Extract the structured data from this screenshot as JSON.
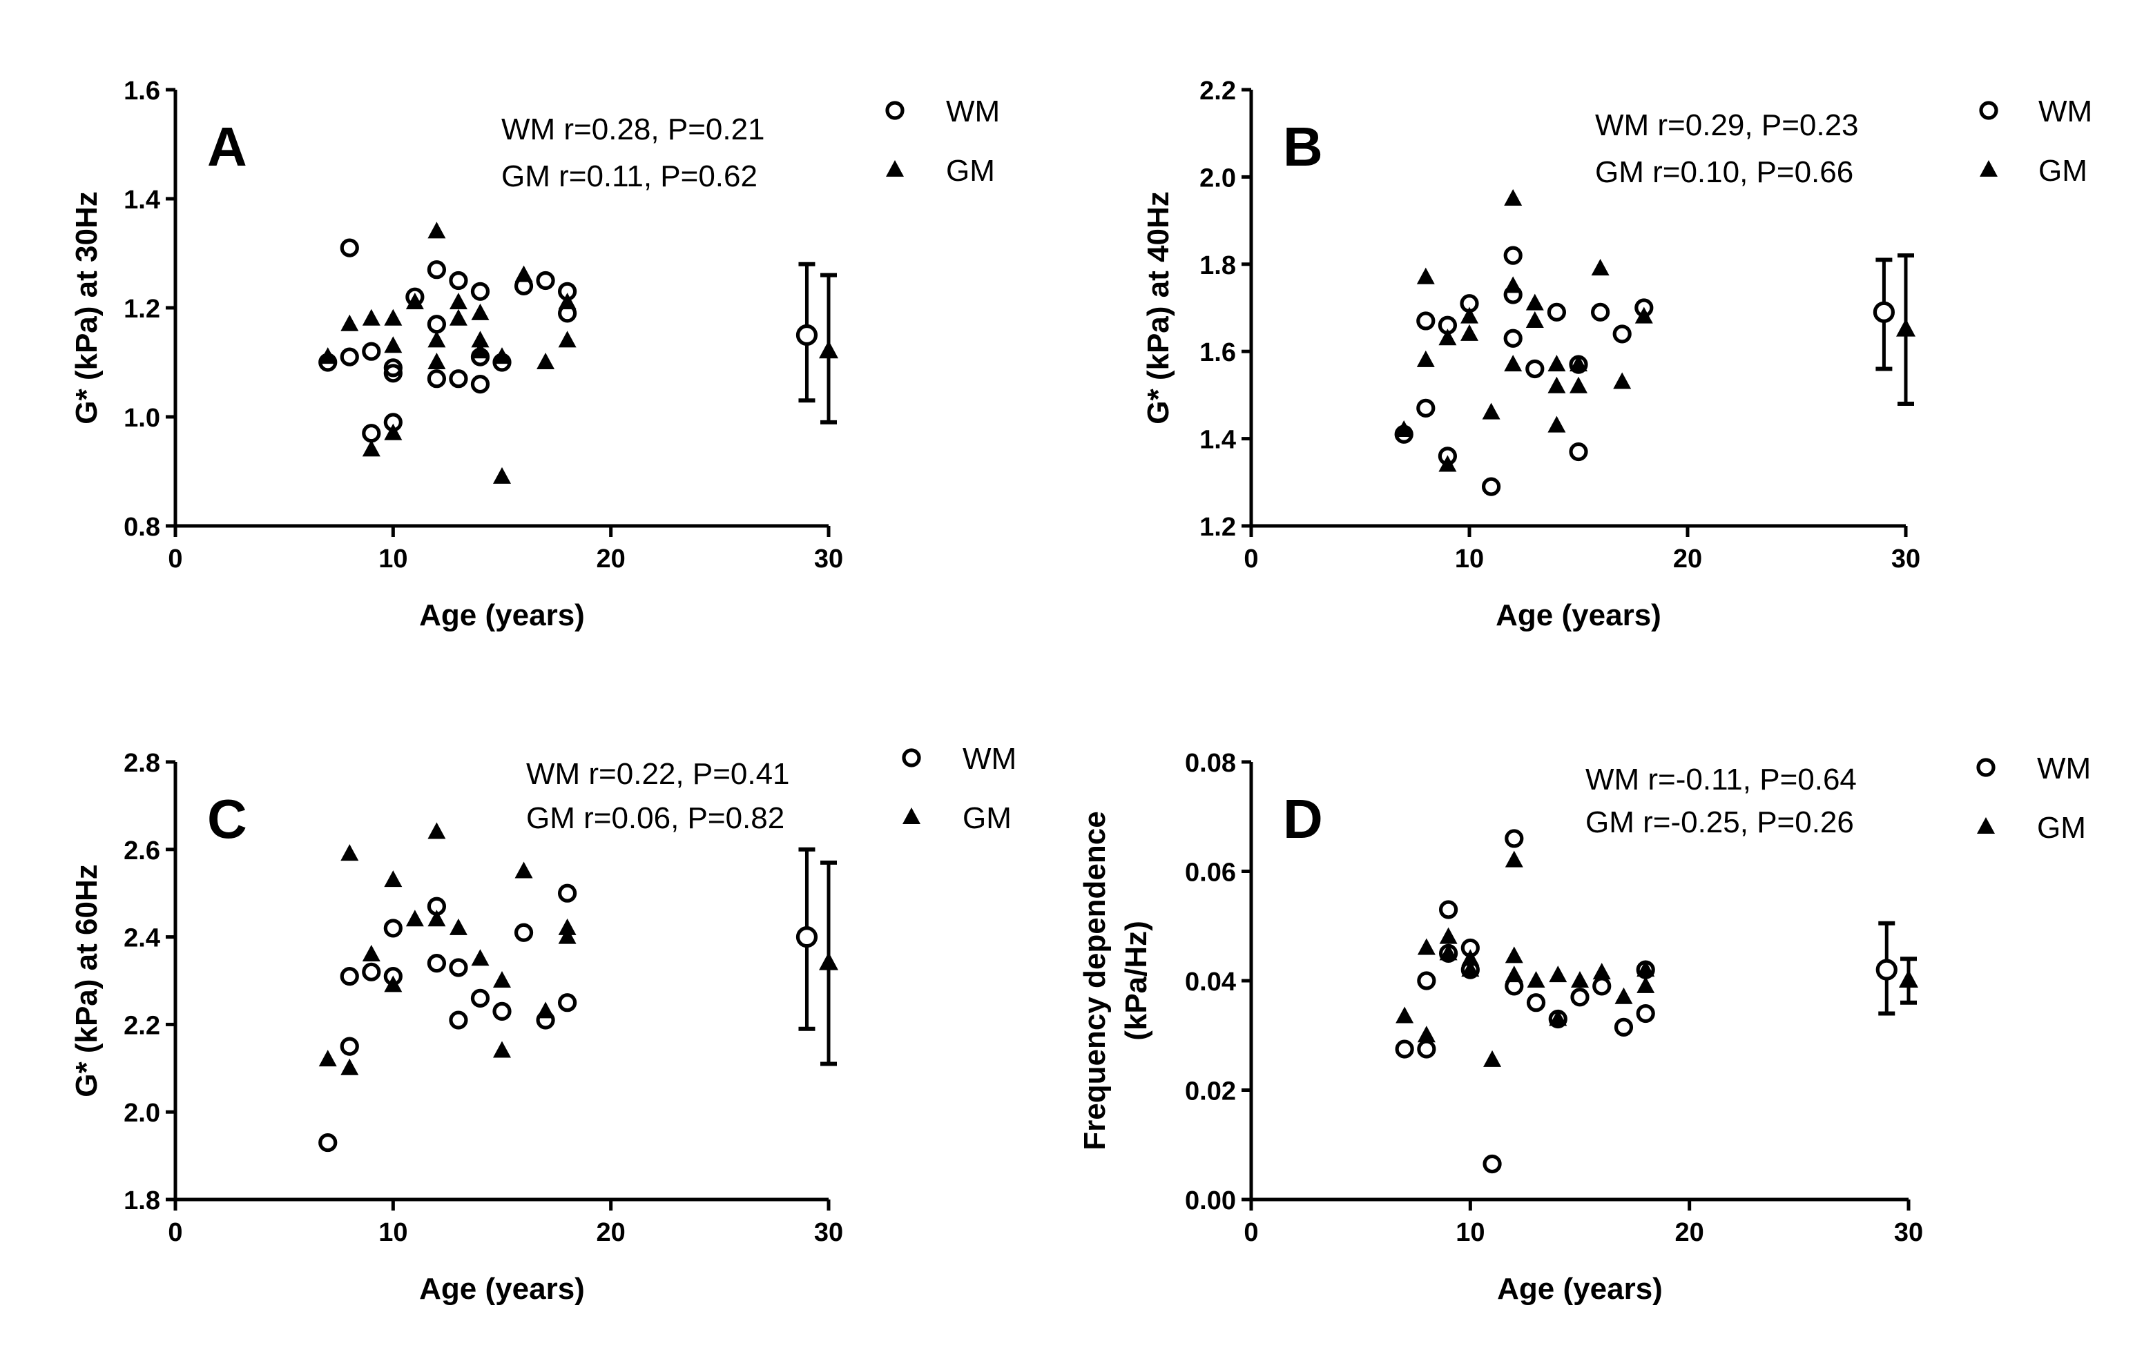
{
  "chart_data": [
    {
      "type": "scatter",
      "panel_label": "A",
      "xlabel": "Age (years)",
      "ylabel": [
        "G* (kPa) at 30Hz"
      ],
      "xlim": [
        0,
        30
      ],
      "ylim": [
        0.8,
        1.6
      ],
      "xticks": [
        0,
        10,
        20,
        30
      ],
      "xtick_labels": [
        "0",
        "10",
        "20",
        "30"
      ],
      "yticks": [
        0.8,
        1.0,
        1.2,
        1.4,
        1.6
      ],
      "ytick_labels": [
        "0.8",
        "1.0",
        "1.2",
        "1.4",
        "1.6"
      ],
      "stats": [
        "WM r=0.28, P=0.21",
        "GM  r=0.11, P=0.62"
      ],
      "legend_position": "top-right",
      "series": [
        {
          "name": "WM",
          "marker": "open-circle",
          "x": [
            7,
            8,
            8,
            9,
            9,
            10,
            10,
            10,
            11,
            12,
            12,
            12,
            13,
            13,
            14,
            14,
            14,
            15,
            16,
            17,
            18,
            18
          ],
          "y": [
            1.1,
            1.31,
            1.11,
            1.12,
            0.97,
            1.09,
            1.08,
            0.99,
            1.22,
            1.27,
            1.17,
            1.07,
            1.25,
            1.07,
            1.23,
            1.11,
            1.06,
            1.1,
            1.24,
            1.25,
            1.23,
            1.19
          ],
          "summary": {
            "x": 29,
            "mean": 1.15,
            "upper": 1.28,
            "lower": 1.03
          }
        },
        {
          "name": "GM",
          "marker": "filled-triangle",
          "x": [
            7,
            8,
            9,
            9,
            10,
            10,
            10,
            11,
            12,
            12,
            12,
            13,
            13,
            14,
            14,
            14,
            15,
            15,
            16,
            17,
            18,
            18
          ],
          "y": [
            1.11,
            1.17,
            1.18,
            0.94,
            1.18,
            1.13,
            0.97,
            1.21,
            1.34,
            1.14,
            1.1,
            1.21,
            1.18,
            1.19,
            1.14,
            1.12,
            0.89,
            1.11,
            1.26,
            1.1,
            1.21,
            1.14
          ],
          "summary": {
            "x": 30,
            "mean": 1.12,
            "upper": 1.26,
            "lower": 0.99
          }
        }
      ]
    },
    {
      "type": "scatter",
      "panel_label": "B",
      "xlabel": "Age (years)",
      "ylabel": [
        "G* (kPa) at 40Hz"
      ],
      "xlim": [
        0,
        30
      ],
      "ylim": [
        1.2,
        2.2
      ],
      "xticks": [
        0,
        10,
        20,
        30
      ],
      "xtick_labels": [
        "0",
        "10",
        "20",
        "30"
      ],
      "yticks": [
        1.2,
        1.4,
        1.6,
        1.8,
        2.0,
        2.2
      ],
      "ytick_labels": [
        "1.2",
        "1.4",
        "1.6",
        "1.8",
        "2.0",
        "2.2"
      ],
      "stats": [
        "WM r=0.29, P=0.23",
        "GM  r=0.10, P=0.66"
      ],
      "legend_position": "top-right",
      "series": [
        {
          "name": "WM",
          "marker": "open-circle",
          "x": [
            7,
            8,
            8,
            9,
            9,
            10,
            11,
            12,
            12,
            12,
            13,
            14,
            15,
            15,
            16,
            17,
            18
          ],
          "y": [
            1.41,
            1.47,
            1.67,
            1.36,
            1.66,
            1.71,
            1.29,
            1.82,
            1.63,
            1.73,
            1.56,
            1.69,
            1.57,
            1.37,
            1.69,
            1.64,
            1.7
          ],
          "summary": {
            "x": 29,
            "mean": 1.69,
            "upper": 1.81,
            "lower": 1.56
          }
        },
        {
          "name": "GM",
          "marker": "filled-triangle",
          "x": [
            7,
            8,
            8,
            9,
            9,
            10,
            10,
            11,
            12,
            12,
            12,
            13,
            13,
            14,
            14,
            14,
            15,
            15,
            16,
            17,
            18
          ],
          "y": [
            1.42,
            1.77,
            1.58,
            1.63,
            1.34,
            1.68,
            1.64,
            1.46,
            1.95,
            1.75,
            1.57,
            1.71,
            1.67,
            1.57,
            1.52,
            1.43,
            1.57,
            1.52,
            1.79,
            1.53,
            1.68
          ],
          "summary": {
            "x": 30,
            "mean": 1.65,
            "upper": 1.82,
            "lower": 1.48
          }
        }
      ]
    },
    {
      "type": "scatter",
      "panel_label": "C",
      "xlabel": "Age (years)",
      "ylabel": [
        "G* (kPa) at 60Hz"
      ],
      "xlim": [
        0,
        30
      ],
      "ylim": [
        1.8,
        2.8
      ],
      "xticks": [
        0,
        10,
        20,
        30
      ],
      "xtick_labels": [
        "0",
        "10",
        "20",
        "30"
      ],
      "yticks": [
        1.8,
        2.0,
        2.2,
        2.4,
        2.6,
        2.8
      ],
      "ytick_labels": [
        "1.8",
        "2.0",
        "2.2",
        "2.4",
        "2.6",
        "2.8"
      ],
      "stats": [
        "WM r=0.22, P=0.41",
        "GM  r=0.06, P=0.82"
      ],
      "legend_position": "top-right",
      "series": [
        {
          "name": "WM",
          "marker": "open-circle",
          "x": [
            7,
            8,
            8,
            9,
            10,
            10,
            12,
            12,
            13,
            13,
            14,
            15,
            16,
            17,
            18,
            18
          ],
          "y": [
            1.93,
            2.15,
            2.31,
            2.32,
            2.31,
            2.42,
            2.47,
            2.34,
            2.33,
            2.21,
            2.26,
            2.23,
            2.41,
            2.21,
            2.25,
            2.5
          ],
          "summary": {
            "x": 29,
            "mean": 2.4,
            "upper": 2.6,
            "lower": 2.19
          }
        },
        {
          "name": "GM",
          "marker": "filled-triangle",
          "x": [
            7,
            8,
            8,
            9,
            10,
            10,
            11,
            12,
            12,
            13,
            14,
            15,
            15,
            16,
            17,
            18,
            18
          ],
          "y": [
            2.12,
            2.1,
            2.59,
            2.36,
            2.53,
            2.29,
            2.44,
            2.64,
            2.44,
            2.42,
            2.35,
            2.3,
            2.14,
            2.55,
            2.23,
            2.42,
            2.4
          ],
          "summary": {
            "x": 30,
            "mean": 2.34,
            "upper": 2.57,
            "lower": 2.11
          }
        }
      ]
    },
    {
      "type": "scatter",
      "panel_label": "D",
      "xlabel": "Age (years)",
      "ylabel": [
        "Frequency dependence",
        "(kPa/Hz)"
      ],
      "xlim": [
        0,
        30
      ],
      "ylim": [
        0,
        0.08
      ],
      "xticks": [
        0,
        10,
        20,
        30
      ],
      "xtick_labels": [
        "0",
        "10",
        "20",
        "30"
      ],
      "yticks": [
        0,
        0.02,
        0.04,
        0.06,
        0.08
      ],
      "ytick_labels": [
        "0.00",
        "0.02",
        "0.04",
        "0.06",
        "0.08"
      ],
      "stats": [
        "WM r=-0.11, P=0.64",
        "GM r=-0.25, P=0.26"
      ],
      "legend_position": "top-right",
      "series": [
        {
          "name": "WM",
          "marker": "open-circle",
          "x": [
            7,
            8,
            8,
            9,
            9,
            10,
            10,
            11,
            12,
            12,
            13,
            14,
            15,
            16,
            17,
            18,
            18
          ],
          "y": [
            0.0275,
            0.0275,
            0.04,
            0.053,
            0.045,
            0.046,
            0.042,
            0.0065,
            0.066,
            0.039,
            0.036,
            0.033,
            0.037,
            0.039,
            0.0315,
            0.034,
            0.042
          ],
          "summary": {
            "x": 29,
            "mean": 0.042,
            "upper": 0.0505,
            "lower": 0.034
          }
        },
        {
          "name": "GM",
          "marker": "filled-triangle",
          "x": [
            7,
            8,
            8,
            9,
            9,
            10,
            10,
            11,
            12,
            12,
            12,
            13,
            14,
            14,
            15,
            16,
            17,
            18,
            18
          ],
          "y": [
            0.0335,
            0.046,
            0.03,
            0.048,
            0.045,
            0.044,
            0.042,
            0.0255,
            0.062,
            0.0445,
            0.041,
            0.04,
            0.041,
            0.033,
            0.04,
            0.0415,
            0.037,
            0.042,
            0.039
          ],
          "summary": {
            "x": 30,
            "mean": 0.04,
            "upper": 0.044,
            "lower": 0.036
          }
        }
      ]
    }
  ]
}
